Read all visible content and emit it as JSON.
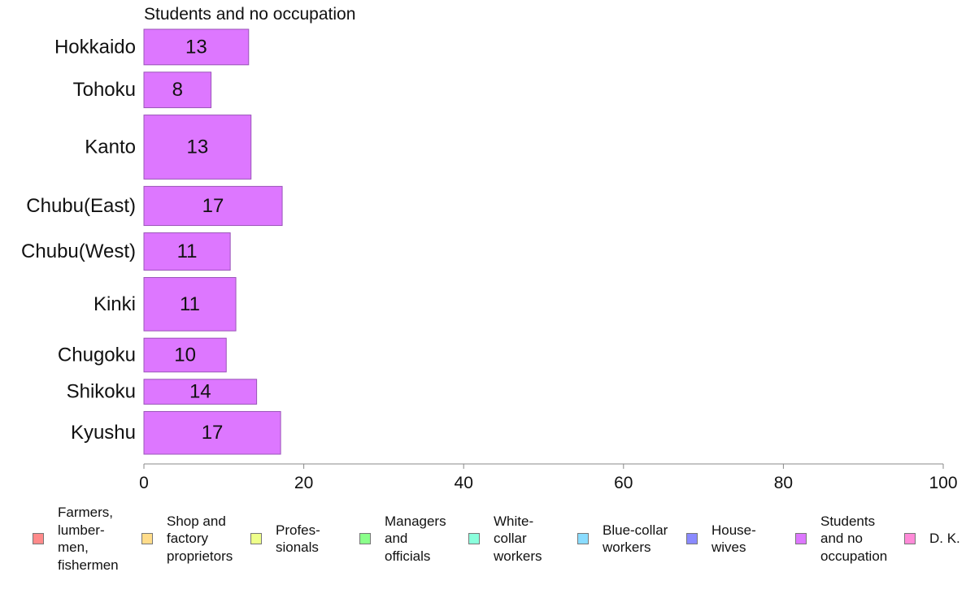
{
  "chart_data": {
    "type": "bar",
    "orientation": "horizontal",
    "title": "Students and no occupation",
    "categories": [
      "Hokkaido",
      "Tohoku",
      "Kanto",
      "Chubu(East)",
      "Chubu(West)",
      "Kinki",
      "Chugoku",
      "Shikoku",
      "Kyushu"
    ],
    "values": [
      13,
      8,
      13,
      17,
      11,
      11,
      10,
      14,
      17
    ],
    "plotted_values": [
      13.1,
      8.4,
      13.4,
      17.3,
      10.8,
      11.5,
      10.3,
      14.1,
      17.1
    ],
    "relative_bar_widths": [
      1.0,
      1.0,
      1.8,
      1.1,
      1.05,
      1.5,
      0.95,
      0.7,
      1.2
    ],
    "xlim": [
      0,
      100
    ],
    "xticks": [
      0,
      20,
      40,
      60,
      80,
      100
    ],
    "bar_color": "#dd77ff",
    "legend": [
      {
        "label": "Farmers,\nlumber-\nmen,\nfishermen",
        "color": "#ff8a8a"
      },
      {
        "label": "Shop and\nfactory\nproprietors",
        "color": "#ffdc8a"
      },
      {
        "label": "Profes-\nsionals",
        "color": "#eeff8a"
      },
      {
        "label": "Managers\nand\nofficials",
        "color": "#8aff8a"
      },
      {
        "label": "White-\ncollar\nworkers",
        "color": "#8affdc"
      },
      {
        "label": "Blue-collar\nworkers",
        "color": "#8adcff"
      },
      {
        "label": "House-\nwives",
        "color": "#8a8aff"
      },
      {
        "label": "Students\nand no\noccupation",
        "color": "#dd77ff"
      },
      {
        "label": "D. K.",
        "color": "#ff8ad8"
      }
    ]
  }
}
